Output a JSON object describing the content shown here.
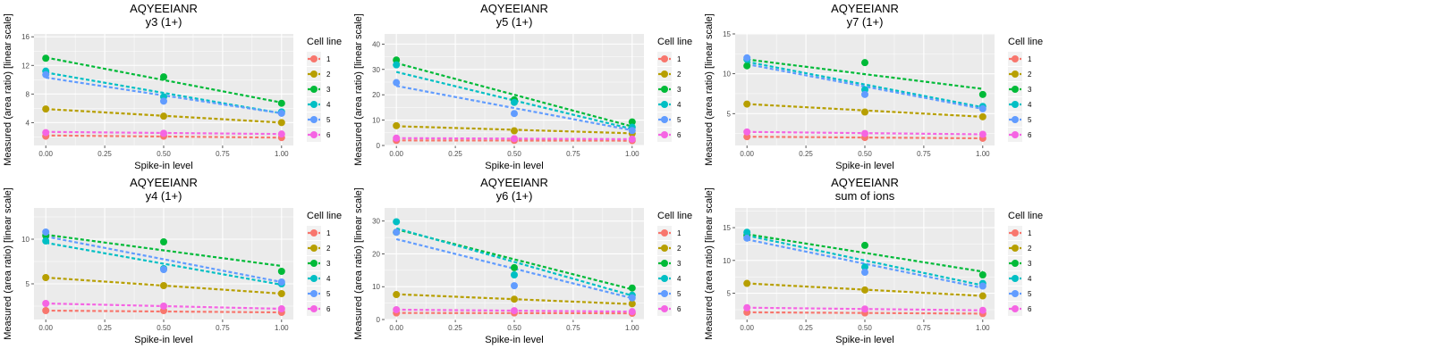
{
  "figure": {
    "x_label": "Spike-in level",
    "y_label": "Measured (area ratio) [linear scale]",
    "legend_title": "Cell line",
    "series_colors": {
      "1": "#F8766D",
      "2": "#B79F00",
      "3": "#00BA38",
      "4": "#00BFC4",
      "5": "#619CFF",
      "6": "#F564E3"
    },
    "panel_background": "#EBEBEB",
    "grid_color": "#FFFFFF"
  },
  "chart_data": [
    {
      "type": "scatter",
      "title": "AQYEEIANR",
      "subtitle": "y3 (1+)",
      "xlabel": "Spike-in level",
      "ylabel": "Measured (area ratio) [linear scale]",
      "xlim": [
        -0.05,
        1.05
      ],
      "ylim": [
        0.8,
        16.4
      ],
      "x_ticks": [
        0,
        0.25,
        0.5,
        0.75,
        1
      ],
      "x_tick_labels": [
        "0.00",
        "0.25",
        "0.50",
        "0.75",
        "1.00"
      ],
      "y_ticks": [
        4,
        8,
        12,
        16
      ],
      "y_tick_labels": [
        "4",
        "8",
        "12",
        "16"
      ],
      "legend": {
        "title": "Cell line",
        "position": "right",
        "entries": [
          "1",
          "2",
          "3",
          "4",
          "5",
          "6"
        ]
      },
      "trend_lines": "dashed linear fit per cell line",
      "series": [
        {
          "name": "1",
          "x": [
            0,
            0.5,
            1
          ],
          "y": [
            2.1,
            2.1,
            1.9
          ],
          "fit": [
            2.2,
            1.9
          ]
        },
        {
          "name": "2",
          "x": [
            0,
            0.5,
            1
          ],
          "y": [
            5.9,
            4.9,
            4.0
          ],
          "fit": [
            5.9,
            4.0
          ]
        },
        {
          "name": "3",
          "x": [
            0,
            0.5,
            1
          ],
          "y": [
            13.0,
            10.4,
            6.7
          ],
          "fit": [
            13.1,
            6.8
          ]
        },
        {
          "name": "4",
          "x": [
            0,
            0.5,
            1
          ],
          "y": [
            11.2,
            7.6,
            5.5
          ],
          "fit": [
            11.0,
            5.3
          ]
        },
        {
          "name": "5",
          "x": [
            0,
            0.5,
            1
          ],
          "y": [
            10.7,
            7.0,
            5.3
          ],
          "fit": [
            10.3,
            5.3
          ]
        },
        {
          "name": "6",
          "x": [
            0,
            0.5,
            1
          ],
          "y": [
            2.6,
            2.5,
            2.4
          ],
          "fit": [
            2.7,
            2.4
          ]
        }
      ]
    },
    {
      "type": "scatter",
      "title": "AQYEEIANR",
      "subtitle": "y5 (1+)",
      "xlabel": "Spike-in level",
      "ylabel": "Measured (area ratio) [linear scale]",
      "xlim": [
        -0.05,
        1.05
      ],
      "ylim": [
        0,
        44
      ],
      "x_ticks": [
        0,
        0.25,
        0.5,
        0.75,
        1
      ],
      "x_tick_labels": [
        "0.00",
        "0.25",
        "0.50",
        "0.75",
        "1.00"
      ],
      "y_ticks": [
        0,
        10,
        20,
        30,
        40
      ],
      "y_tick_labels": [
        "0",
        "10",
        "20",
        "30",
        "40"
      ],
      "legend": {
        "title": "Cell line",
        "position": "right",
        "entries": [
          "1",
          "2",
          "3",
          "4",
          "5",
          "6"
        ]
      },
      "trend_lines": "dashed linear fit per cell line",
      "series": [
        {
          "name": "1",
          "x": [
            0,
            0.5,
            1
          ],
          "y": [
            2.0,
            2.0,
            1.9
          ],
          "fit": [
            2.0,
            1.9
          ]
        },
        {
          "name": "2",
          "x": [
            0,
            0.5,
            1
          ],
          "y": [
            7.8,
            5.8,
            4.7
          ],
          "fit": [
            7.6,
            4.8
          ]
        },
        {
          "name": "3",
          "x": [
            0,
            0.5,
            1
          ],
          "y": [
            33.7,
            18.0,
            9.3
          ],
          "fit": [
            32.5,
            7.5
          ]
        },
        {
          "name": "4",
          "x": [
            0,
            0.5,
            1
          ],
          "y": [
            31.8,
            17.0,
            7.2
          ],
          "fit": [
            29.0,
            6.5
          ]
        },
        {
          "name": "5",
          "x": [
            0,
            0.5,
            1
          ],
          "y": [
            24.8,
            12.6,
            5.9
          ],
          "fit": [
            23.5,
            6.0
          ]
        },
        {
          "name": "6",
          "x": [
            0,
            0.5,
            1
          ],
          "y": [
            2.9,
            2.7,
            2.5
          ],
          "fit": [
            2.9,
            2.5
          ]
        }
      ]
    },
    {
      "type": "scatter",
      "title": "AQYEEIANR",
      "subtitle": "y7 (1+)",
      "xlabel": "Spike-in level",
      "ylabel": "Measured (area ratio) [linear scale]",
      "xlim": [
        -0.05,
        1.05
      ],
      "ylim": [
        1,
        15
      ],
      "x_ticks": [
        0,
        0.25,
        0.5,
        0.75,
        1
      ],
      "x_tick_labels": [
        "0.00",
        "0.25",
        "0.50",
        "0.75",
        "1.00"
      ],
      "y_ticks": [
        5,
        10,
        15
      ],
      "y_tick_labels": [
        "5",
        "10",
        "15"
      ],
      "legend": {
        "title": "Cell line",
        "position": "right",
        "entries": [
          "1",
          "2",
          "3",
          "4",
          "5",
          "6"
        ]
      },
      "trend_lines": "dashed linear fit per cell line",
      "series": [
        {
          "name": "1",
          "x": [
            0,
            0.5,
            1
          ],
          "y": [
            2.1,
            2.0,
            1.9
          ],
          "fit": [
            2.1,
            1.9
          ]
        },
        {
          "name": "2",
          "x": [
            0,
            0.5,
            1
          ],
          "y": [
            6.2,
            5.2,
            4.6
          ],
          "fit": [
            6.2,
            4.6
          ]
        },
        {
          "name": "3",
          "x": [
            0,
            0.5,
            1
          ],
          "y": [
            11.0,
            11.4,
            7.4
          ],
          "fit": [
            11.8,
            8.1
          ]
        },
        {
          "name": "4",
          "x": [
            0,
            0.5,
            1
          ],
          "y": [
            11.8,
            8.0,
            5.9
          ],
          "fit": [
            11.5,
            5.8
          ]
        },
        {
          "name": "5",
          "x": [
            0,
            0.5,
            1
          ],
          "y": [
            12.0,
            7.4,
            5.6
          ],
          "fit": [
            11.2,
            5.6
          ]
        },
        {
          "name": "6",
          "x": [
            0,
            0.5,
            1
          ],
          "y": [
            2.7,
            2.5,
            2.4
          ],
          "fit": [
            2.7,
            2.4
          ]
        }
      ]
    },
    {
      "type": "scatter",
      "title": "AQYEEIANR",
      "subtitle": "y4 (1+)",
      "xlabel": "Spike-in level",
      "ylabel": "Measured (area ratio) [linear scale]",
      "xlim": [
        -0.05,
        1.05
      ],
      "ylim": [
        1,
        13.5
      ],
      "x_ticks": [
        0,
        0.25,
        0.5,
        0.75,
        1
      ],
      "x_tick_labels": [
        "0.00",
        "0.25",
        "0.50",
        "0.75",
        "1.00"
      ],
      "y_ticks": [
        5,
        10
      ],
      "y_tick_labels": [
        "5",
        "10"
      ],
      "legend": {
        "title": "Cell line",
        "position": "right",
        "entries": [
          "1",
          "2",
          "3",
          "4",
          "5",
          "6"
        ]
      },
      "trend_lines": "dashed linear fit per cell line",
      "series": [
        {
          "name": "1",
          "x": [
            0,
            0.5,
            1
          ],
          "y": [
            2.0,
            2.0,
            1.8
          ],
          "fit": [
            2.0,
            1.8
          ]
        },
        {
          "name": "2",
          "x": [
            0,
            0.5,
            1
          ],
          "y": [
            5.7,
            4.8,
            3.9
          ],
          "fit": [
            5.7,
            3.9
          ]
        },
        {
          "name": "3",
          "x": [
            0,
            0.5,
            1
          ],
          "y": [
            10.4,
            9.7,
            6.4
          ],
          "fit": [
            10.5,
            7.0
          ]
        },
        {
          "name": "4",
          "x": [
            0,
            0.5,
            1
          ],
          "y": [
            9.8,
            6.7,
            5.0
          ],
          "fit": [
            9.6,
            4.9
          ]
        },
        {
          "name": "5",
          "x": [
            0,
            0.5,
            1
          ],
          "y": [
            10.8,
            6.6,
            5.2
          ],
          "fit": [
            10.3,
            5.2
          ]
        },
        {
          "name": "6",
          "x": [
            0,
            0.5,
            1
          ],
          "y": [
            2.8,
            2.5,
            2.2
          ],
          "fit": [
            2.8,
            2.2
          ]
        }
      ]
    },
    {
      "type": "scatter",
      "title": "AQYEEIANR",
      "subtitle": "y6 (1+)",
      "xlabel": "Spike-in level",
      "ylabel": "Measured (area ratio) [linear scale]",
      "xlim": [
        -0.05,
        1.05
      ],
      "ylim": [
        0,
        34
      ],
      "x_ticks": [
        0,
        0.25,
        0.5,
        0.75,
        1
      ],
      "x_tick_labels": [
        "0.00",
        "0.25",
        "0.50",
        "0.75",
        "1.00"
      ],
      "y_ticks": [
        0,
        10,
        20,
        30
      ],
      "y_tick_labels": [
        "0",
        "10",
        "20",
        "30"
      ],
      "legend": {
        "title": "Cell line",
        "position": "right",
        "entries": [
          "1",
          "2",
          "3",
          "4",
          "5",
          "6"
        ]
      },
      "trend_lines": "dashed linear fit per cell line",
      "series": [
        {
          "name": "1",
          "x": [
            0,
            0.5,
            1
          ],
          "y": [
            2.0,
            2.0,
            1.9
          ],
          "fit": [
            2.0,
            1.9
          ]
        },
        {
          "name": "2",
          "x": [
            0,
            0.5,
            1
          ],
          "y": [
            7.6,
            6.2,
            4.8
          ],
          "fit": [
            7.7,
            4.7
          ]
        },
        {
          "name": "3",
          "x": [
            0,
            0.5,
            1
          ],
          "y": [
            26.6,
            15.8,
            9.6
          ],
          "fit": [
            27.5,
            9.2
          ]
        },
        {
          "name": "4",
          "x": [
            0,
            0.5,
            1
          ],
          "y": [
            29.8,
            13.6,
            7.4
          ],
          "fit": [
            27.8,
            7.3
          ]
        },
        {
          "name": "5",
          "x": [
            0,
            0.5,
            1
          ],
          "y": [
            26.6,
            10.3,
            6.6
          ],
          "fit": [
            24.5,
            6.5
          ]
        },
        {
          "name": "6",
          "x": [
            0,
            0.5,
            1
          ],
          "y": [
            3.0,
            2.7,
            2.4
          ],
          "fit": [
            3.0,
            2.4
          ]
        }
      ]
    },
    {
      "type": "scatter",
      "title": "AQYEEIANR",
      "subtitle": "sum of ions",
      "xlabel": "Spike-in level",
      "ylabel": "Measured (area ratio) [linear scale]",
      "xlim": [
        -0.05,
        1.05
      ],
      "ylim": [
        1,
        18
      ],
      "x_ticks": [
        0,
        0.25,
        0.5,
        0.75,
        1
      ],
      "x_tick_labels": [
        "0.00",
        "0.25",
        "0.50",
        "0.75",
        "1.00"
      ],
      "y_ticks": [
        5,
        10,
        15
      ],
      "y_tick_labels": [
        "5",
        "10",
        "15"
      ],
      "legend": {
        "title": "Cell line",
        "position": "right",
        "entries": [
          "1",
          "2",
          "3",
          "4",
          "5",
          "6"
        ]
      },
      "trend_lines": "dashed linear fit per cell line",
      "series": [
        {
          "name": "1",
          "x": [
            0,
            0.5,
            1
          ],
          "y": [
            2.1,
            2.0,
            1.9
          ],
          "fit": [
            2.1,
            1.9
          ]
        },
        {
          "name": "2",
          "x": [
            0,
            0.5,
            1
          ],
          "y": [
            6.5,
            5.5,
            4.6
          ],
          "fit": [
            6.5,
            4.6
          ]
        },
        {
          "name": "3",
          "x": [
            0,
            0.5,
            1
          ],
          "y": [
            13.8,
            12.3,
            7.8
          ],
          "fit": [
            14.0,
            8.3
          ]
        },
        {
          "name": "4",
          "x": [
            0,
            0.5,
            1
          ],
          "y": [
            14.3,
            9.0,
            6.5
          ],
          "fit": [
            13.8,
            6.2
          ]
        },
        {
          "name": "5",
          "x": [
            0,
            0.5,
            1
          ],
          "y": [
            13.4,
            8.2,
            6.1
          ],
          "fit": [
            13.2,
            5.8
          ]
        },
        {
          "name": "6",
          "x": [
            0,
            0.5,
            1
          ],
          "y": [
            2.8,
            2.6,
            2.4
          ],
          "fit": [
            2.8,
            2.4
          ]
        }
      ]
    }
  ]
}
